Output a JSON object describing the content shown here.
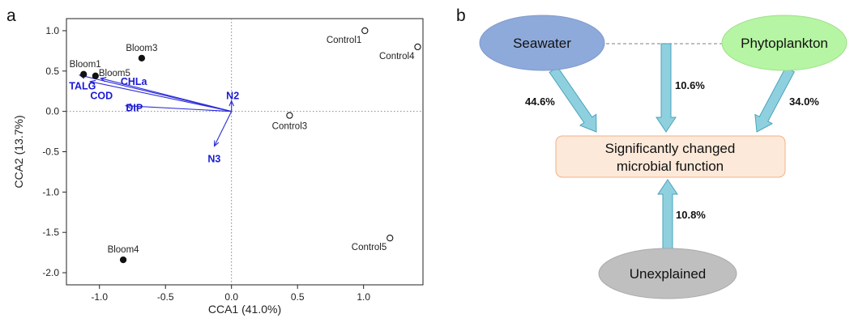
{
  "panel_a": {
    "label": "a",
    "chart_data": {
      "type": "scatter",
      "xlabel": "CCA1 (41.0%)",
      "ylabel": "CCA2 (13.7%)",
      "xlim": [
        -1.25,
        1.45
      ],
      "ylim": [
        -2.15,
        1.15
      ],
      "xticks": [
        -1.0,
        -0.5,
        0.0,
        0.5,
        1.0
      ],
      "yticks": [
        1.0,
        0.5,
        0.0,
        -0.5,
        -1.0,
        -1.5,
        -2.0
      ],
      "xtick_labels": [
        "-1.0",
        "-0.5",
        "0.0",
        "0.5",
        "1.0"
      ],
      "ytick_labels": [
        "1.0",
        "0.5",
        "0.0",
        "-0.5",
        "-1.0",
        "-1.5",
        "-2.0"
      ],
      "reference_lines": "dotted lines at x=0 and y=0",
      "grid": false,
      "points": [
        {
          "label": "Bloom1",
          "x": -1.12,
          "y": 0.46,
          "group": "Bloom",
          "marker": "filled",
          "label_pos": "above-left"
        },
        {
          "label": "Bloom3",
          "x": -0.68,
          "y": 0.66,
          "group": "Bloom",
          "marker": "filled",
          "label_pos": "above"
        },
        {
          "label": "Bloom5",
          "x": -1.03,
          "y": 0.44,
          "group": "Bloom",
          "marker": "filled",
          "label_pos": "right"
        },
        {
          "label": "Bloom4",
          "x": -0.82,
          "y": -1.84,
          "group": "Bloom",
          "marker": "filled",
          "label_pos": "above"
        },
        {
          "label": "Control1",
          "x": 1.01,
          "y": 1.0,
          "group": "Control",
          "marker": "open",
          "label_pos": "below-left"
        },
        {
          "label": "Control4",
          "x": 1.41,
          "y": 0.8,
          "group": "Control",
          "marker": "open",
          "label_pos": "below-left"
        },
        {
          "label": "Control3",
          "x": 0.44,
          "y": -0.05,
          "group": "Control",
          "marker": "open",
          "label_pos": "below"
        },
        {
          "label": "Control5",
          "x": 1.2,
          "y": -1.57,
          "group": "Control",
          "marker": "open",
          "label_pos": "below-left"
        }
      ],
      "vectors": [
        {
          "label": "TALG",
          "x": -1.15,
          "y": 0.45,
          "label_x": -1.23,
          "label_y": 0.31
        },
        {
          "label": "COD",
          "x": -1.07,
          "y": 0.37,
          "label_x": -1.07,
          "label_y": 0.19
        },
        {
          "label": "CHLa",
          "x": -0.99,
          "y": 0.41,
          "label_x": -0.84,
          "label_y": 0.37
        },
        {
          "label": "DIP",
          "x": -0.8,
          "y": 0.07,
          "label_x": -0.8,
          "label_y": 0.04
        },
        {
          "label": "N2",
          "x": 0.0,
          "y": 0.13,
          "label_x": -0.04,
          "label_y": 0.19
        },
        {
          "label": "N3",
          "x": -0.13,
          "y": -0.43,
          "label_x": -0.18,
          "label_y": -0.59
        }
      ]
    }
  },
  "panel_b": {
    "label": "b",
    "nodes": {
      "seawater": "Seawater",
      "phytoplankton": "Phytoplankton",
      "center_line1": "Significantly changed",
      "center_line2": "microbial function",
      "unexplained": "Unexplained"
    },
    "percentages": {
      "seawater": "44.6%",
      "shared": "10.6%",
      "phytoplankton": "34.0%",
      "unexplained": "10.8%"
    },
    "colors": {
      "seawater_fill": "#8eaadb",
      "phytoplankton_fill": "#b6f5a3",
      "unexplained_fill": "#bfbfbf",
      "center_fill": "#fde9d9",
      "center_border": "#f4b183",
      "arrow_fill": "#8fd0df",
      "arrow_stroke": "#4aa3bd"
    }
  }
}
